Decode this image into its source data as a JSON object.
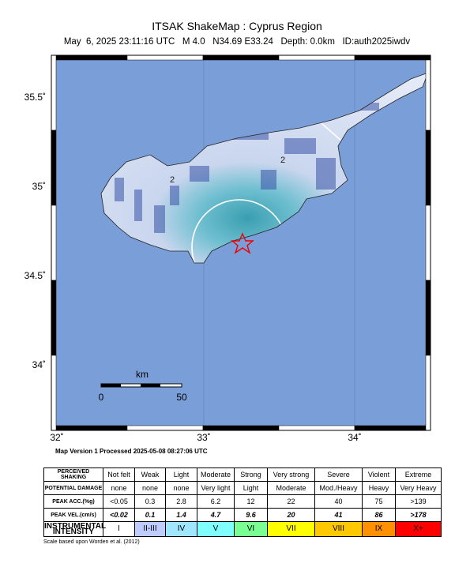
{
  "header": {
    "title": "ITSAK ShakeMap : Cyprus Region",
    "subtitle": "May  6, 2025 23:11:16 UTC   M 4.0   N34.69 E33.24   Depth: 0.0km   ID:auth2025iwdv"
  },
  "map": {
    "y_labels": [
      "35.5˚",
      "35˚",
      "34.5˚",
      "34˚"
    ],
    "x_labels": [
      "32˚",
      "33˚",
      "34˚"
    ],
    "scale": {
      "unit": "km",
      "labels": [
        "0",
        "50"
      ]
    },
    "contour_labels": [
      "2",
      "2"
    ],
    "version_note": "Map Version 1 Processed 2025-05-08 08:27:06 UTC"
  },
  "legend": {
    "rows": [
      {
        "label": "PERCEIVED SHAKING",
        "cells": [
          "Not felt",
          "Weak",
          "Light",
          "Moderate",
          "Strong",
          "Very strong",
          "Severe",
          "Violent",
          "Extreme"
        ]
      },
      {
        "label": "POTENTIAL DAMAGE",
        "cells": [
          "none",
          "none",
          "none",
          "Very light",
          "Light",
          "Moderate",
          "Mod./Heavy",
          "Heavy",
          "Very Heavy"
        ]
      },
      {
        "label": "PEAK ACC.(%g)",
        "cells": [
          "<0.05",
          "0.3",
          "2.8",
          "6.2",
          "12",
          "22",
          "40",
          "75",
          ">139"
        ]
      },
      {
        "label": "PEAK VEL.(cm/s)",
        "cells": [
          "<0.02",
          "0.1",
          "1.4",
          "4.7",
          "9.6",
          "20",
          "41",
          "86",
          ">178"
        ]
      },
      {
        "label": "INSTRUMENTAL INTENSITY",
        "cells": [
          "I",
          "II-III",
          "IV",
          "V",
          "VI",
          "VII",
          "VIII",
          "IX",
          "X+"
        ],
        "colors": [
          "#ffffff",
          "#bfccff",
          "#a0e6ff",
          "#80ffff",
          "#7aff93",
          "#ffff00",
          "#ffc800",
          "#ff9100",
          "#ff0000"
        ]
      }
    ]
  },
  "footer": "Scale based upon Worden et al. (2012)"
}
